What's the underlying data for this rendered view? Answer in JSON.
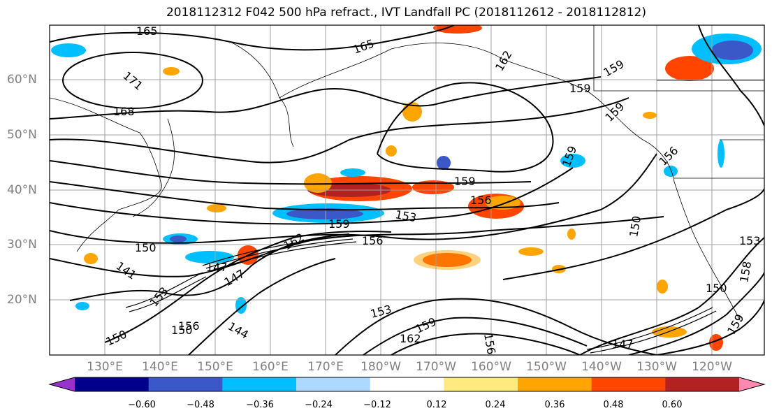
{
  "title": "2018112312 F042 500 hPa refract., IVT Landfall PC (2018112612 - 2018112812)",
  "lon_labels": [
    "130°E",
    "140°E",
    "150°E",
    "160°E",
    "170°E",
    "180°W",
    "170°W",
    "160°W",
    "150°W",
    "140°W",
    "130°W",
    "120°W"
  ],
  "lat_labels": [
    "60°N",
    "50°N",
    "40°N",
    "30°N",
    "20°N"
  ],
  "contour_labels": [
    "165",
    "171",
    "168",
    "165",
    "162",
    "159",
    "159",
    "156",
    "159",
    "159",
    "159",
    "156",
    "153",
    "159",
    "150",
    "162",
    "156",
    "147",
    "141",
    "153",
    "147",
    "153",
    "144",
    "150",
    "159",
    "162",
    "156",
    "150",
    "147",
    "150",
    "158",
    "156",
    "153",
    "150",
    "159"
  ],
  "colorbar": {
    "ticks": [
      "−0.60",
      "−0.48",
      "−0.36",
      "−0.24",
      "−0.12",
      "0.12",
      "0.24",
      "0.36",
      "0.48",
      "0.60"
    ],
    "colors": [
      "#9932cc",
      "#00008b",
      "#3a58c8",
      "#00bfff",
      "#add8ff",
      "#ffffff",
      "#ffea80",
      "#ffa500",
      "#ff4500",
      "#b22222",
      "#ff88b0"
    ]
  }
}
